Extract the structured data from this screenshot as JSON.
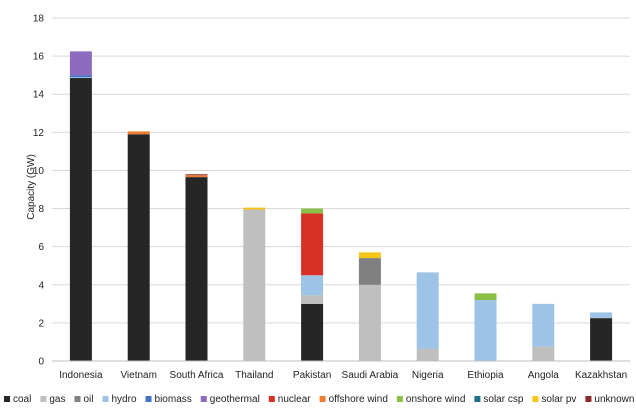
{
  "chart_data": {
    "type": "bar",
    "stacked": true,
    "categories": [
      "Indonesia",
      "Vietnam",
      "South Africa",
      "Thailand",
      "Pakistan",
      "Saudi Arabia",
      "Nigeria",
      "Ethiopia",
      "Angola",
      "Kazakhstan"
    ],
    "ylabel": "Capacity (GW)",
    "xlabel": "",
    "title": "",
    "ylim": [
      0,
      18
    ],
    "yticks": [
      0,
      2,
      4,
      6,
      8,
      10,
      12,
      14,
      16,
      18
    ],
    "grid": true,
    "legend_position": "bottom",
    "series": [
      {
        "name": "coal",
        "color": "#262626",
        "values": [
          14.85,
          11.9,
          9.65,
          0,
          3.0,
          0,
          0,
          0,
          0,
          2.25
        ]
      },
      {
        "name": "gas",
        "color": "#bfbfbf",
        "values": [
          0,
          0,
          0,
          7.95,
          0.45,
          4.0,
          0.65,
          0,
          0.75,
          0
        ]
      },
      {
        "name": "oil",
        "color": "#808080",
        "values": [
          0,
          0,
          0,
          0,
          0,
          1.4,
          0,
          0,
          0,
          0
        ]
      },
      {
        "name": "hydro",
        "color": "#9dc3e6",
        "values": [
          0.05,
          0,
          0,
          0,
          1.05,
          0,
          4.0,
          3.2,
          2.25,
          0.3
        ]
      },
      {
        "name": "biomass",
        "color": "#4472c4",
        "values": [
          0.1,
          0,
          0,
          0,
          0,
          0,
          0,
          0,
          0,
          0
        ]
      },
      {
        "name": "geothermal",
        "color": "#8e6bbf",
        "values": [
          1.25,
          0,
          0,
          0,
          0,
          0,
          0,
          0,
          0,
          0
        ]
      },
      {
        "name": "nuclear",
        "color": "#d93025",
        "values": [
          0,
          0,
          0,
          0,
          3.25,
          0,
          0,
          0,
          0,
          0
        ]
      },
      {
        "name": "offshore wind",
        "color": "#ed7d31",
        "values": [
          0,
          0.15,
          0.1,
          0,
          0,
          0,
          0,
          0,
          0,
          0
        ]
      },
      {
        "name": "onshore wind",
        "color": "#8cbf45",
        "values": [
          0,
          0,
          0,
          0,
          0.25,
          0,
          0,
          0.35,
          0,
          0
        ]
      },
      {
        "name": "solar csp",
        "color": "#1f6f8b",
        "values": [
          0,
          0,
          0,
          0,
          0,
          0,
          0,
          0,
          0,
          0
        ]
      },
      {
        "name": "solar pv",
        "color": "#f5c518",
        "values": [
          0,
          0,
          0,
          0.1,
          0,
          0.3,
          0,
          0,
          0,
          0
        ]
      },
      {
        "name": "unknown",
        "color": "#8b2a2a",
        "values": [
          0,
          0,
          0.05,
          0,
          0,
          0,
          0,
          0,
          0,
          0
        ]
      }
    ]
  }
}
